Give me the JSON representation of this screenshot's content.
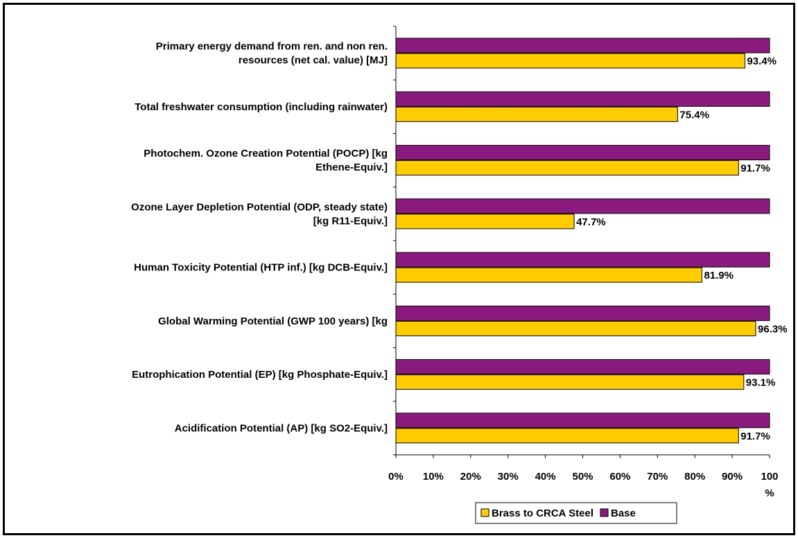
{
  "chart_data": {
    "type": "bar",
    "orientation": "horizontal",
    "categories": [
      [
        "Primary energy demand from ren. and non ren.",
        "resources (net cal. value) [MJ]"
      ],
      [
        "Total freshwater consumption (including rainwater)"
      ],
      [
        "Photochem. Ozone Creation Potential (POCP) [kg",
        "Ethene-Equiv.]"
      ],
      [
        "Ozone Layer Depletion Potential (ODP, steady state)",
        "[kg R11-Equiv.]"
      ],
      [
        "Human Toxicity Potential (HTP inf.) [kg DCB-Equiv.]"
      ],
      [
        "Global Warming Potential (GWP 100 years) [kg"
      ],
      [
        "Eutrophication Potential (EP) [kg Phosphate-Equiv.]"
      ],
      [
        "Acidification Potential (AP) [kg SO2-Equiv.]"
      ]
    ],
    "series": [
      {
        "name": "Base",
        "color": "#8B1A7F",
        "values": [
          100,
          100,
          100,
          100,
          100,
          100,
          100,
          100
        ],
        "labels": [
          "",
          "",
          "",
          "",
          "",
          "",
          "",
          ""
        ]
      },
      {
        "name": "Brass to CRCA Steel",
        "color": "#FFCC00",
        "values": [
          93.4,
          75.4,
          91.7,
          47.7,
          81.9,
          96.3,
          93.1,
          91.7
        ],
        "labels": [
          "93.4%",
          "75.4%",
          "91.7%",
          "47.7%",
          "81.9%",
          "96.3%",
          "93.1%",
          "91.7%"
        ]
      }
    ],
    "xlim": [
      0,
      100
    ],
    "xticks": [
      0,
      10,
      20,
      30,
      40,
      50,
      60,
      70,
      80,
      90,
      100
    ],
    "xtick_labels": [
      "0%",
      "10%",
      "20%",
      "30%",
      "40%",
      "50%",
      "60%",
      "70%",
      "80%",
      "90%",
      [
        "100",
        "%"
      ]
    ],
    "legend": {
      "placement": "bottom-center",
      "entries": [
        {
          "name": "Brass to CRCA Steel",
          "color": "#FFCC00"
        },
        {
          "name": "Base",
          "color": "#8B1A7F"
        }
      ]
    },
    "grid": false,
    "title": "",
    "xlabel": "",
    "ylabel": ""
  }
}
